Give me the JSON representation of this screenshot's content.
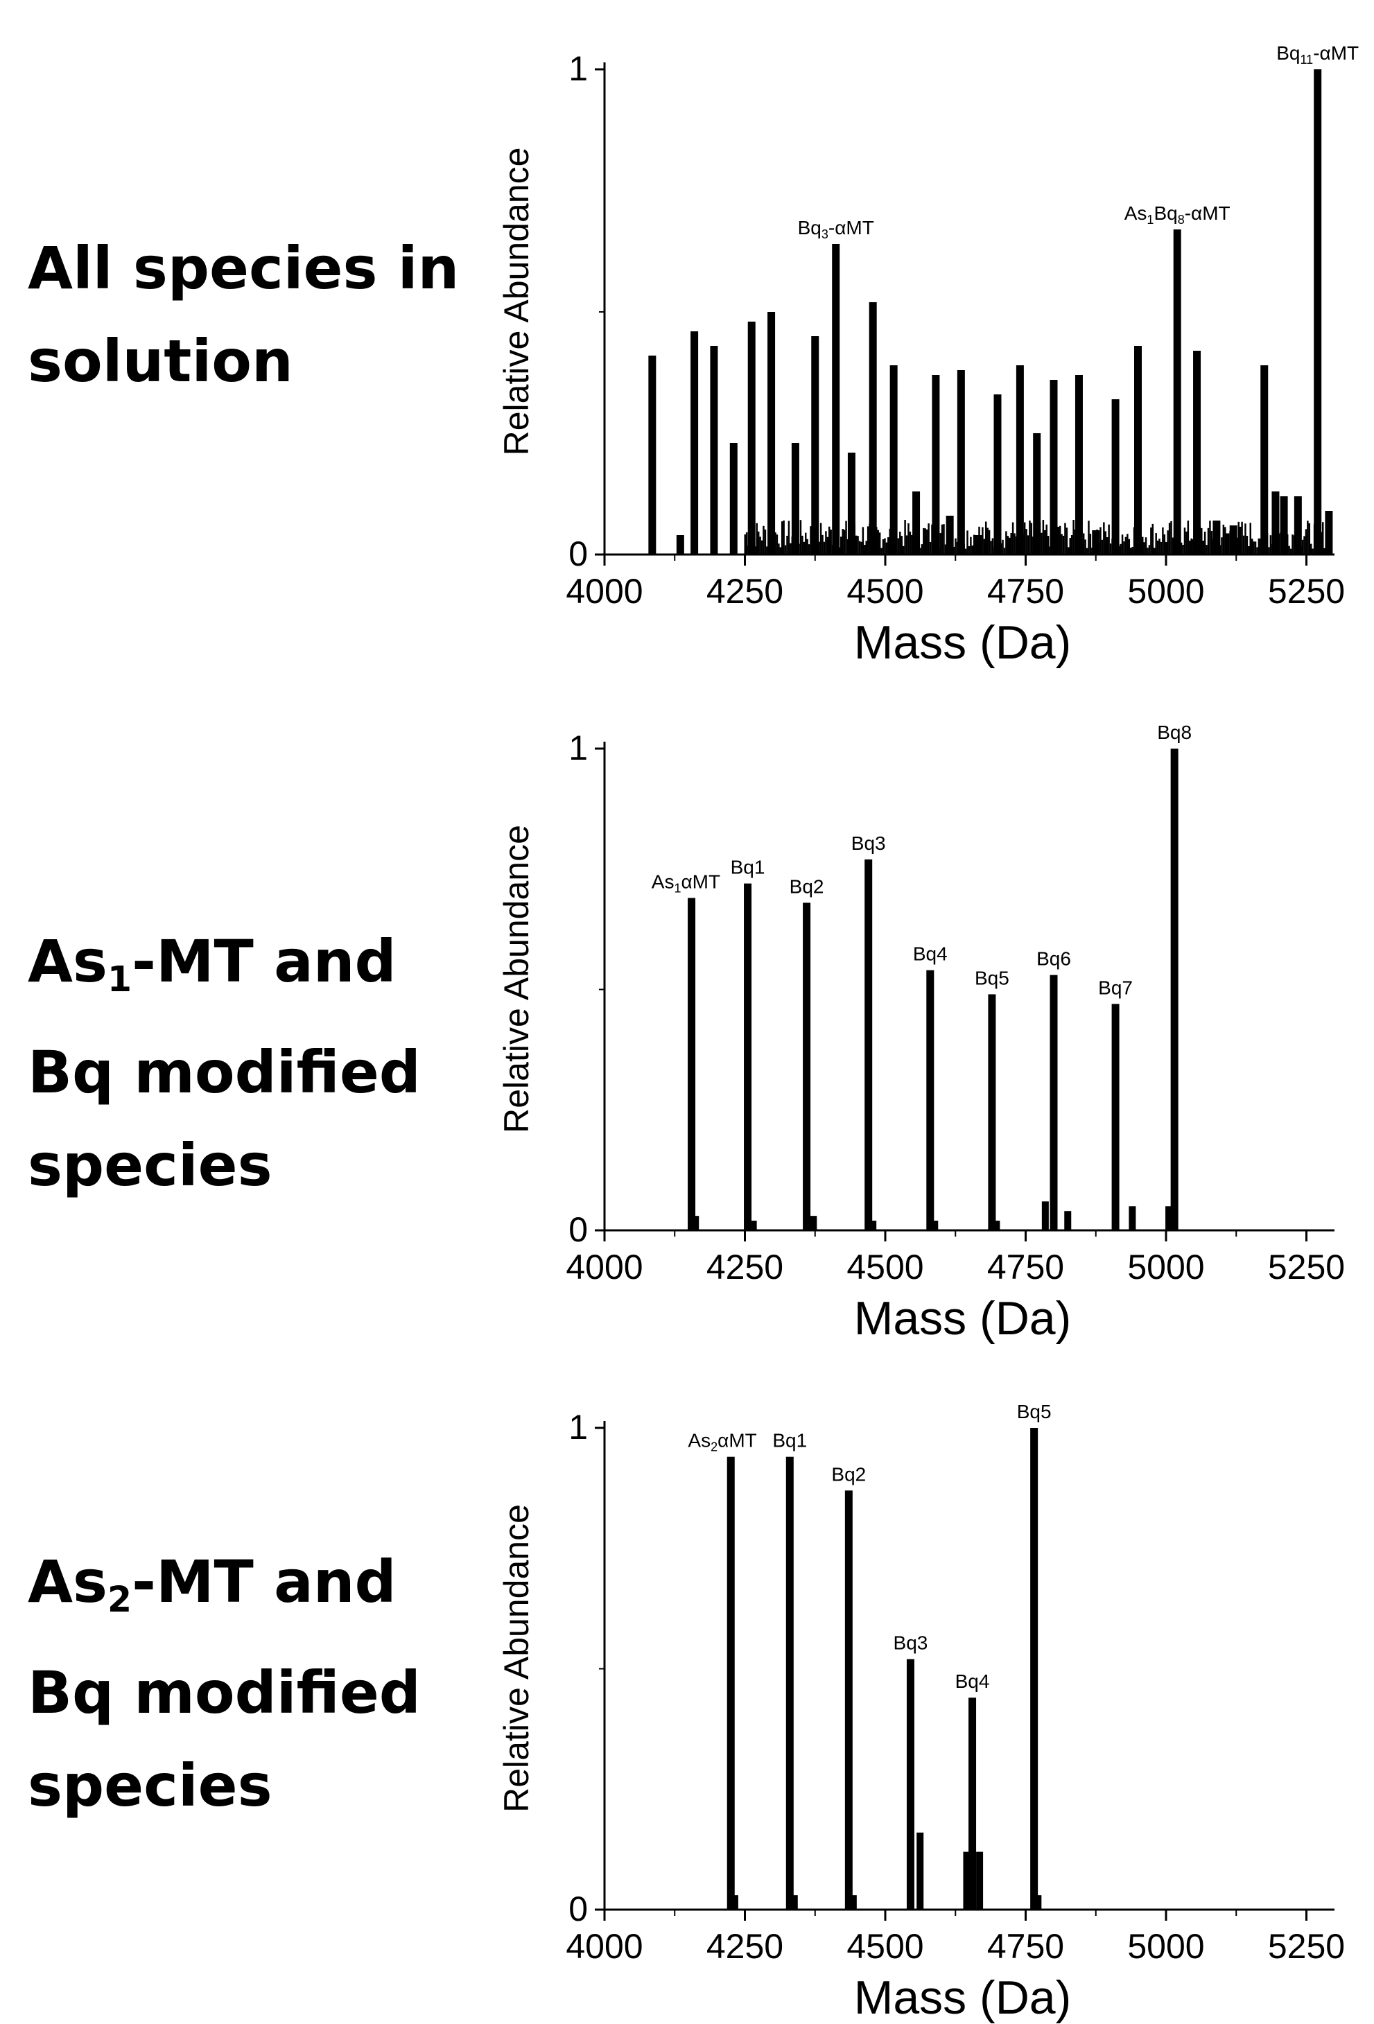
{
  "panels": [
    {
      "label_lines": [
        {
          "text": "All species in"
        },
        {
          "text": "solution"
        }
      ]
    },
    {
      "label_lines": [
        {
          "main": "As",
          "sub": "1",
          "rest": "-MT and"
        },
        {
          "text": "Bq modified"
        },
        {
          "text": "species"
        }
      ]
    },
    {
      "label_lines": [
        {
          "main": "As",
          "sub": "2",
          "rest": "-MT and"
        },
        {
          "text": "Bq modified"
        },
        {
          "text": "species"
        }
      ]
    }
  ],
  "chart_data": [
    {
      "type": "bar",
      "title": "",
      "xlabel": "Mass (Da)",
      "ylabel": "Relative Abundance",
      "xlim": [
        4000,
        5300
      ],
      "ylim": [
        0,
        1
      ],
      "xticks": [
        4000,
        4250,
        4500,
        4750,
        5000,
        5250
      ],
      "yticks": [
        0,
        1
      ],
      "x": [
        4085,
        4135,
        4160,
        4195,
        4230,
        4262,
        4297,
        4340,
        4375,
        4412,
        4440,
        4478,
        4515,
        4555,
        4590,
        4615,
        4635,
        4665,
        4700,
        4740,
        4770,
        4800,
        4845,
        4875,
        4910,
        4950,
        5020,
        5055,
        5090,
        5120,
        5175,
        5195,
        5210,
        5235,
        5270,
        5290
      ],
      "values": [
        0.41,
        0.04,
        0.46,
        0.43,
        0.23,
        0.48,
        0.5,
        0.23,
        0.45,
        0.64,
        0.21,
        0.52,
        0.39,
        0.13,
        0.37,
        0.08,
        0.38,
        0.04,
        0.33,
        0.39,
        0.25,
        0.36,
        0.37,
        0.05,
        0.32,
        0.43,
        0.67,
        0.42,
        0.07,
        0.06,
        0.39,
        0.13,
        0.12,
        0.12,
        1.0,
        0.09
      ],
      "background_noise": {
        "from": 4250,
        "to": 5290,
        "level": 0.06
      },
      "annotations": [
        {
          "x": 4412,
          "y": 0.64,
          "text": "Bq",
          "sub": "3",
          "text_after": "-αMT"
        },
        {
          "x": 5020,
          "y": 0.67,
          "text": "As",
          "sub": "1",
          "text_mid": "Bq",
          "sub2": "8",
          "text_after": "-αMT"
        },
        {
          "x": 5270,
          "y": 1.0,
          "text": "Bq",
          "sub": "11",
          "text_after": "-αMT"
        }
      ]
    },
    {
      "type": "bar",
      "title": "",
      "xlabel": "Mass (Da)",
      "ylabel": "Relative Abundance",
      "xlim": [
        4000,
        5300
      ],
      "ylim": [
        0,
        1
      ],
      "xticks": [
        4000,
        4250,
        4500,
        4750,
        5000,
        5250
      ],
      "yticks": [
        0,
        1
      ],
      "x": [
        4155,
        4255,
        4360,
        4470,
        4580,
        4690,
        4800,
        4910,
        5015
      ],
      "values": [
        0.69,
        0.72,
        0.68,
        0.77,
        0.54,
        0.49,
        0.53,
        0.47,
        1.0
      ],
      "minor_x": [
        4162,
        4265,
        4372,
        4478,
        4588,
        4698,
        4785,
        4825,
        4940,
        5005
      ],
      "minor_values": [
        0.03,
        0.02,
        0.03,
        0.02,
        0.02,
        0.02,
        0.06,
        0.04,
        0.05,
        0.05
      ],
      "annotations": [
        {
          "x": 4145,
          "y": 0.69,
          "text": "As",
          "sub": "1",
          "text_after": "αMT"
        },
        {
          "x": 4255,
          "y": 0.72,
          "text": "Bq1"
        },
        {
          "x": 4360,
          "y": 0.68,
          "text": "Bq2"
        },
        {
          "x": 4470,
          "y": 0.77,
          "text": "Bq3"
        },
        {
          "x": 4580,
          "y": 0.54,
          "text": "Bq4"
        },
        {
          "x": 4690,
          "y": 0.49,
          "text": "Bq5"
        },
        {
          "x": 4800,
          "y": 0.53,
          "text": "Bq6"
        },
        {
          "x": 4910,
          "y": 0.47,
          "text": "Bq7"
        },
        {
          "x": 5015,
          "y": 1.0,
          "text": "Bq8"
        }
      ]
    },
    {
      "type": "bar",
      "title": "",
      "xlabel": "Mass (Da)",
      "ylabel": "Relative Abundance",
      "xlim": [
        4000,
        5300
      ],
      "ylim": [
        0,
        1
      ],
      "xticks": [
        4000,
        4250,
        4500,
        4750,
        5000,
        5250
      ],
      "yticks": [
        0,
        1
      ],
      "x": [
        4225,
        4330,
        4435,
        4545,
        4655,
        4765
      ],
      "values": [
        0.94,
        0.94,
        0.87,
        0.52,
        0.44,
        1.0
      ],
      "minor_x": [
        4232,
        4338,
        4443,
        4562,
        4645,
        4668,
        4772
      ],
      "minor_values": [
        0.03,
        0.03,
        0.03,
        0.16,
        0.12,
        0.12,
        0.03
      ],
      "annotations": [
        {
          "x": 4210,
          "y": 0.94,
          "text": "As",
          "sub": "2",
          "text_after": "αMT"
        },
        {
          "x": 4330,
          "y": 0.94,
          "text": "Bq1"
        },
        {
          "x": 4435,
          "y": 0.87,
          "text": "Bq2"
        },
        {
          "x": 4545,
          "y": 0.52,
          "text": "Bq3"
        },
        {
          "x": 4655,
          "y": 0.44,
          "text": "Bq4"
        },
        {
          "x": 4765,
          "y": 1.0,
          "text": "Bq5"
        }
      ]
    }
  ]
}
